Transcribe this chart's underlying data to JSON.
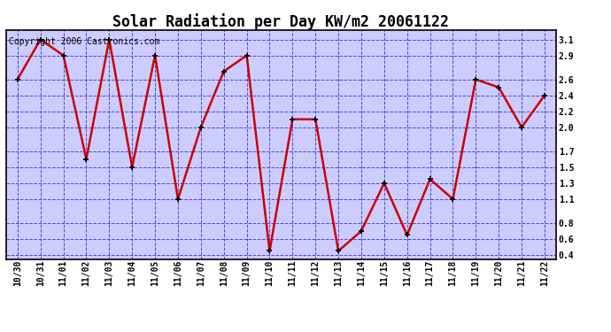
{
  "title": "Solar Radiation per Day KW/m2 20061122",
  "copyright": "Copyright 2006 Castronics.com",
  "x_labels": [
    "10/30",
    "10/31",
    "11/01",
    "11/02",
    "11/03",
    "11/04",
    "11/05",
    "11/06",
    "11/07",
    "11/08",
    "11/09",
    "11/10",
    "11/11",
    "11/12",
    "11/13",
    "11/14",
    "11/15",
    "11/16",
    "11/17",
    "11/18",
    "11/19",
    "11/20",
    "11/21",
    "11/22"
  ],
  "y_values": [
    2.6,
    3.1,
    2.9,
    1.6,
    3.1,
    1.5,
    2.9,
    1.1,
    2.0,
    2.7,
    2.9,
    0.45,
    2.1,
    2.1,
    0.45,
    0.7,
    1.3,
    0.65,
    1.35,
    1.1,
    2.6,
    2.5,
    2.0,
    2.4
  ],
  "y_ticks": [
    0.4,
    0.6,
    0.8,
    1.1,
    1.3,
    1.5,
    1.7,
    2.0,
    2.2,
    2.4,
    2.6,
    2.9,
    3.1
  ],
  "ylim": [
    0.35,
    3.22
  ],
  "line_color": "#cc0000",
  "marker_color": "#000000",
  "bg_color": "#ccccff",
  "fig_bg_color": "#ffffff",
  "grid_color": "#3333cc",
  "border_color": "#000000",
  "title_fontsize": 12,
  "copyright_fontsize": 7,
  "tick_fontsize": 7,
  "marker_size": 5,
  "line_width": 1.8
}
